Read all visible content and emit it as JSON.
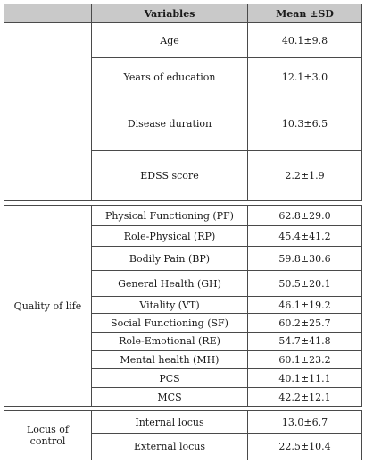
{
  "header": {
    "group": "",
    "variables": "Variables",
    "mean_sd": "Mean ±SD"
  },
  "demographics": [
    {
      "variable": "Age",
      "value": "40.1±9.8"
    },
    {
      "variable": "Years of education",
      "value": "12.1±3.0"
    },
    {
      "variable": "Disease duration",
      "value": "10.3±6.5"
    },
    {
      "variable": "EDSS score",
      "value": "2.2±1.9"
    }
  ],
  "quality_of_life": {
    "label": "Quality of life",
    "rows": [
      {
        "variable": "Physical Functioning (PF)",
        "value": "62.8±29.0"
      },
      {
        "variable": "Role-Physical (RP)",
        "value": "45.4±41.2"
      },
      {
        "variable": "Bodily Pain (BP)",
        "value": "59.8±30.6"
      },
      {
        "variable": "General Health (GH)",
        "value": "50.5±20.1"
      },
      {
        "variable": "Vitality (VT)",
        "value": "46.1±19.2"
      },
      {
        "variable": "Social Functioning (SF)",
        "value": "60.2±25.7"
      },
      {
        "variable": "Role-Emotional (RE)",
        "value": "54.7±41.8"
      },
      {
        "variable": "Mental health (MH)",
        "value": "60.1±23.2"
      },
      {
        "variable": "PCS",
        "value": "40.1±11.1"
      },
      {
        "variable": "MCS",
        "value": "42.2±12.1"
      }
    ]
  },
  "locus_of_control": {
    "label": "Locus of control",
    "rows": [
      {
        "variable": "Internal locus",
        "value": "13.0±6.7"
      },
      {
        "variable": "External locus",
        "value": "22.5±10.4"
      }
    ]
  }
}
